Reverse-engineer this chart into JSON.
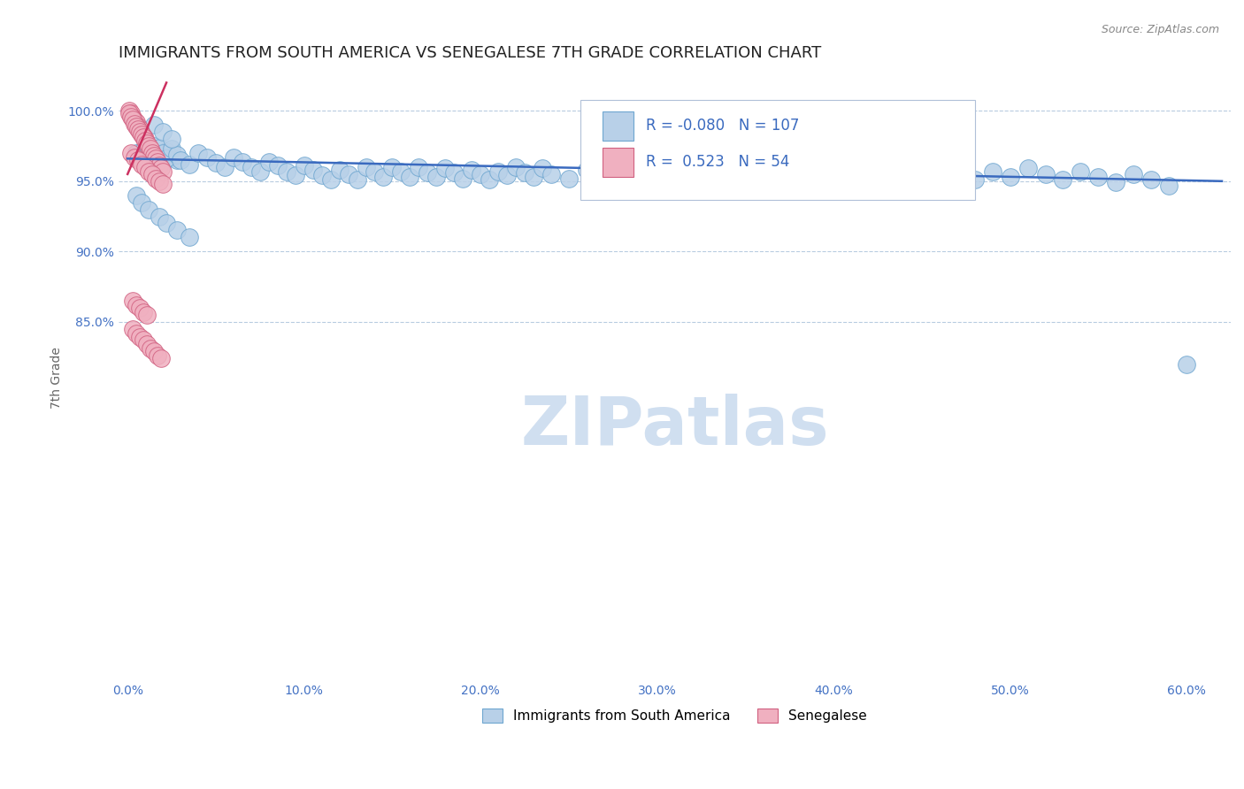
{
  "title": "IMMIGRANTS FROM SOUTH AMERICA VS SENEGALESE 7TH GRADE CORRELATION CHART",
  "source_text": "Source: ZipAtlas.com",
  "ylabel": "7th Grade",
  "R_blue": -0.08,
  "N_blue": 107,
  "R_pink": 0.523,
  "N_pink": 54,
  "blue_color": "#b8d0e8",
  "blue_edge": "#6ea6d0",
  "pink_color": "#f0b0c0",
  "pink_edge": "#d06080",
  "trend_blue_color": "#3a6abf",
  "trend_pink_color": "#cc3060",
  "watermark": "ZIPatlas",
  "watermark_color": "#d0dff0",
  "legend_blue_label": "Immigrants from South America",
  "legend_pink_label": "Senegalese",
  "background_color": "#ffffff",
  "grid_color": "#b8cce0",
  "title_fontsize": 13,
  "axis_label_fontsize": 10,
  "tick_fontsize": 10,
  "tick_color": "#4472c4",
  "blue_x": [
    0.005,
    0.008,
    0.01,
    0.012,
    0.015,
    0.018,
    0.02,
    0.022,
    0.025,
    0.028,
    0.01,
    0.012,
    0.015,
    0.018,
    0.02,
    0.022,
    0.025,
    0.028,
    0.03,
    0.035,
    0.04,
    0.045,
    0.05,
    0.055,
    0.06,
    0.065,
    0.07,
    0.075,
    0.08,
    0.085,
    0.09,
    0.095,
    0.1,
    0.105,
    0.11,
    0.115,
    0.12,
    0.125,
    0.13,
    0.135,
    0.14,
    0.145,
    0.15,
    0.155,
    0.16,
    0.165,
    0.17,
    0.175,
    0.18,
    0.185,
    0.19,
    0.195,
    0.2,
    0.205,
    0.21,
    0.215,
    0.22,
    0.225,
    0.23,
    0.235,
    0.24,
    0.25,
    0.26,
    0.27,
    0.28,
    0.29,
    0.3,
    0.31,
    0.32,
    0.33,
    0.34,
    0.35,
    0.36,
    0.37,
    0.38,
    0.39,
    0.4,
    0.41,
    0.42,
    0.43,
    0.44,
    0.45,
    0.46,
    0.47,
    0.48,
    0.49,
    0.5,
    0.51,
    0.52,
    0.53,
    0.54,
    0.55,
    0.56,
    0.57,
    0.58,
    0.59,
    0.6,
    0.015,
    0.02,
    0.025,
    0.005,
    0.008,
    0.012,
    0.018,
    0.022,
    0.028,
    0.035
  ],
  "blue_y": [
    0.97,
    0.968,
    0.966,
    0.972,
    0.975,
    0.969,
    0.963,
    0.971,
    0.967,
    0.965,
    0.975,
    0.972,
    0.968,
    0.974,
    0.97,
    0.966,
    0.973,
    0.969,
    0.965,
    0.962,
    0.97,
    0.967,
    0.963,
    0.96,
    0.967,
    0.964,
    0.96,
    0.957,
    0.964,
    0.961,
    0.957,
    0.954,
    0.961,
    0.958,
    0.954,
    0.951,
    0.958,
    0.955,
    0.951,
    0.96,
    0.957,
    0.953,
    0.96,
    0.957,
    0.953,
    0.96,
    0.956,
    0.953,
    0.959,
    0.956,
    0.952,
    0.958,
    0.955,
    0.951,
    0.957,
    0.954,
    0.96,
    0.956,
    0.953,
    0.959,
    0.955,
    0.952,
    0.958,
    0.954,
    0.96,
    0.956,
    0.952,
    0.958,
    0.955,
    0.961,
    0.957,
    0.963,
    0.959,
    0.955,
    0.961,
    0.957,
    0.953,
    0.959,
    0.955,
    0.961,
    0.957,
    0.963,
    0.959,
    0.955,
    0.951,
    0.957,
    0.953,
    0.959,
    0.955,
    0.951,
    0.957,
    0.953,
    0.949,
    0.955,
    0.951,
    0.947,
    0.82,
    0.99,
    0.985,
    0.98,
    0.94,
    0.935,
    0.93,
    0.925,
    0.92,
    0.915,
    0.91
  ],
  "pink_x": [
    0.001,
    0.002,
    0.003,
    0.004,
    0.005,
    0.006,
    0.007,
    0.008,
    0.009,
    0.01,
    0.001,
    0.002,
    0.003,
    0.004,
    0.005,
    0.006,
    0.007,
    0.008,
    0.009,
    0.01,
    0.011,
    0.012,
    0.013,
    0.014,
    0.015,
    0.016,
    0.017,
    0.018,
    0.019,
    0.02,
    0.002,
    0.004,
    0.006,
    0.008,
    0.01,
    0.012,
    0.014,
    0.016,
    0.018,
    0.02,
    0.003,
    0.005,
    0.007,
    0.009,
    0.011,
    0.013,
    0.015,
    0.017,
    0.019,
    0.003,
    0.005,
    0.007,
    0.009,
    0.011
  ],
  "pink_y": [
    1.0,
    0.998,
    0.995,
    0.993,
    0.992,
    0.989,
    0.987,
    0.984,
    0.982,
    0.98,
    0.998,
    0.996,
    0.994,
    0.991,
    0.989,
    0.987,
    0.985,
    0.983,
    0.981,
    0.979,
    0.977,
    0.975,
    0.973,
    0.97,
    0.968,
    0.966,
    0.964,
    0.961,
    0.959,
    0.957,
    0.97,
    0.967,
    0.965,
    0.962,
    0.96,
    0.957,
    0.955,
    0.952,
    0.95,
    0.948,
    0.845,
    0.842,
    0.839,
    0.837,
    0.834,
    0.831,
    0.829,
    0.826,
    0.824,
    0.865,
    0.862,
    0.86,
    0.857,
    0.855
  ],
  "xlim": [
    -0.005,
    0.625
  ],
  "ylim": [
    0.595,
    1.025
  ],
  "yticks": [
    0.85,
    0.9,
    0.95,
    1.0
  ],
  "ytick_labels": [
    "85.0%",
    "90.0%",
    "95.0%",
    "100.0%"
  ],
  "xticks": [
    0.0,
    0.1,
    0.2,
    0.3,
    0.4,
    0.5,
    0.6
  ],
  "xtick_labels": [
    "0.0%",
    "10.0%",
    "20.0%",
    "30.0%",
    "40.0%",
    "50.0%",
    "60.0%"
  ]
}
